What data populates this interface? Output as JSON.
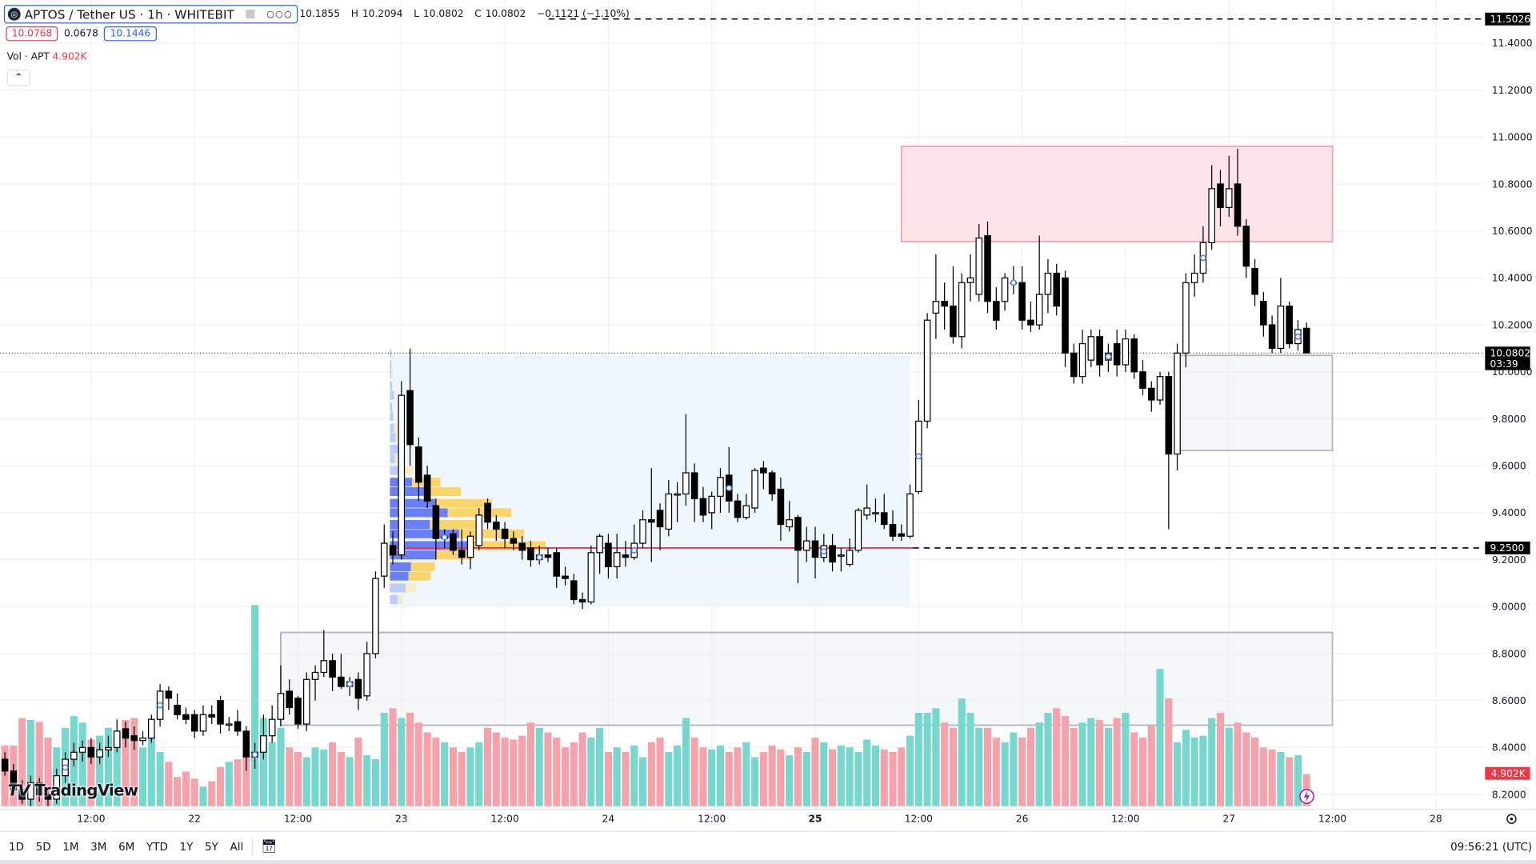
{
  "header": {
    "symbol_title": "APTOS / Tether US · 1h · WHITEBIT",
    "ohlc": {
      "open": "10.1855",
      "high": "10.2094",
      "low": "10.0802",
      "close": "10.0802",
      "change": "−0.1121 (−1.10%)"
    },
    "open_label": "O",
    "high_label": "H",
    "low_label": "L",
    "close_label": "C",
    "bid": "10.0768",
    "spread": "0.0678",
    "ask": "10.1446",
    "volume_label": "Vol · APT",
    "volume_value": "4.902K",
    "collapse_icon": "chevron-up-icon"
  },
  "toolbar": {
    "ranges": [
      "1D",
      "5D",
      "1M",
      "3M",
      "6M",
      "YTD",
      "1Y",
      "5Y",
      "All"
    ],
    "date_range_icon": "calendar-icon",
    "clock": "09:56:21 (UTC)"
  },
  "logo_text": "TradingView",
  "colors": {
    "up_body": "#ffffff",
    "down_body": "#000000",
    "volume_up": "#76d7cd",
    "volume_down": "#f7a1aa",
    "poc_line": "#f23645",
    "profile_up": "#6a7ff7",
    "profile_down": "#fcd56a",
    "supply_zone": "#fde4e8",
    "accent_blue": "#2962ff"
  },
  "chart_data": {
    "type": "candlestick",
    "ylim": [
      8.15,
      11.55
    ],
    "price_ticks": [
      "11.4000",
      "11.2000",
      "11.0000",
      "10.8000",
      "10.6000",
      "10.4000",
      "10.2000",
      "10.0000",
      "9.8000",
      "9.6000",
      "9.4000",
      "9.2000",
      "9.0000",
      "8.8000",
      "8.6000",
      "8.4000",
      "8.2000"
    ],
    "time_ticks": [
      "12:00",
      "22",
      "12:00",
      "23",
      "12:00",
      "24",
      "12:00",
      "25",
      "12:00",
      "26",
      "12:00",
      "27",
      "12:00",
      "28"
    ],
    "bold_tick": "25",
    "price_labels": {
      "high_line": "11.5026",
      "last_price": "10.0802",
      "countdown": "03:39",
      "level": "9.2500",
      "last_volume": "4.902K"
    },
    "levels": {
      "high_line": 11.5026,
      "horizontal_level": 9.25,
      "last_price": 10.0802
    },
    "zones": [
      {
        "name": "supply-zone",
        "price_top": 10.96,
        "price_bottom": 10.555,
        "from_candle": 104,
        "to_candle": 154,
        "kind": "red"
      },
      {
        "name": "demand-zone-upper",
        "price_top": 10.07,
        "price_bottom": 9.665,
        "from_candle": 136,
        "to_candle": 154,
        "kind": "gray"
      },
      {
        "name": "demand-zone-lower",
        "price_top": 8.89,
        "price_bottom": 8.495,
        "from_candle": 32,
        "to_candle": 154,
        "kind": "gray"
      }
    ],
    "volume_profile": {
      "from_candle": 45,
      "to_candle": 105,
      "poc": 9.25,
      "price_top": 10.1,
      "price_bottom": 9.0,
      "rows": [
        {
          "price": 10.08,
          "up": 4,
          "down": 0
        },
        {
          "price": 10.03,
          "up": 4,
          "down": 2
        },
        {
          "price": 9.99,
          "up": 4,
          "down": 5
        },
        {
          "price": 9.94,
          "up": 6,
          "down": 3
        },
        {
          "price": 9.9,
          "up": 12,
          "down": 2
        },
        {
          "price": 9.85,
          "up": 6,
          "down": 3
        },
        {
          "price": 9.81,
          "up": 9,
          "down": 3
        },
        {
          "price": 9.76,
          "up": 12,
          "down": 17
        },
        {
          "price": 9.72,
          "up": 16,
          "down": 13
        },
        {
          "price": 9.67,
          "up": 24,
          "down": 5
        },
        {
          "price": 9.63,
          "up": 14,
          "down": 10
        },
        {
          "price": 9.58,
          "up": 32,
          "down": 32
        },
        {
          "price": 9.53,
          "up": 62,
          "down": 80
        },
        {
          "price": 9.49,
          "up": 97,
          "down": 102
        },
        {
          "price": 9.44,
          "up": 127,
          "down": 159
        },
        {
          "price": 9.4,
          "up": 162,
          "down": 178
        },
        {
          "price": 9.35,
          "up": 112,
          "down": 139
        },
        {
          "price": 9.31,
          "up": 194,
          "down": 182
        },
        {
          "price": 9.26,
          "up": 222,
          "down": 214
        },
        {
          "price": 9.22,
          "up": 130,
          "down": 102
        },
        {
          "price": 9.17,
          "up": 59,
          "down": 67
        },
        {
          "price": 9.13,
          "up": 52,
          "down": 62
        },
        {
          "price": 9.08,
          "up": 44,
          "down": 28
        },
        {
          "price": 9.03,
          "up": 22,
          "down": 14
        }
      ]
    },
    "markers": [
      7,
      18,
      29,
      40,
      51,
      62,
      73,
      84,
      95,
      106,
      117,
      128,
      139,
      150
    ],
    "ohlc": [
      [
        8.35,
        8.38,
        8.28,
        8.3
      ],
      [
        8.3,
        8.33,
        8.2,
        8.22
      ],
      [
        8.22,
        8.26,
        8.16,
        8.18
      ],
      [
        8.18,
        8.28,
        8.15,
        8.25
      ],
      [
        8.25,
        8.27,
        8.17,
        8.2
      ],
      [
        8.2,
        8.23,
        8.15,
        8.18
      ],
      [
        8.18,
        8.31,
        8.16,
        8.28
      ],
      [
        8.28,
        8.38,
        8.25,
        8.35
      ],
      [
        8.35,
        8.42,
        8.32,
        8.38
      ],
      [
        8.38,
        8.43,
        8.34,
        8.4
      ],
      [
        8.4,
        8.44,
        8.33,
        8.36
      ],
      [
        8.36,
        8.42,
        8.33,
        8.39
      ],
      [
        8.39,
        8.45,
        8.36,
        8.4
      ],
      [
        8.4,
        8.52,
        8.38,
        8.47
      ],
      [
        8.48,
        8.51,
        8.4,
        8.44
      ],
      [
        8.45,
        8.49,
        8.39,
        8.43
      ],
      [
        8.43,
        8.47,
        8.41,
        8.44
      ],
      [
        8.44,
        8.54,
        8.42,
        8.52
      ],
      [
        8.52,
        8.67,
        8.49,
        8.64
      ],
      [
        8.64,
        8.66,
        8.56,
        8.61
      ],
      [
        8.58,
        8.63,
        8.52,
        8.54
      ],
      [
        8.54,
        8.57,
        8.5,
        8.52
      ],
      [
        8.54,
        8.56,
        8.44,
        8.47
      ],
      [
        8.47,
        8.58,
        8.45,
        8.54
      ],
      [
        8.54,
        8.58,
        8.5,
        8.53
      ],
      [
        8.6,
        8.62,
        8.46,
        8.5
      ],
      [
        8.5,
        8.53,
        8.47,
        8.5
      ],
      [
        8.51,
        8.56,
        8.45,
        8.47
      ],
      [
        8.47,
        8.49,
        8.3,
        8.36
      ],
      [
        8.36,
        8.42,
        8.31,
        8.38
      ],
      [
        8.38,
        8.54,
        8.35,
        8.45
      ],
      [
        8.45,
        8.58,
        8.42,
        8.52
      ],
      [
        8.52,
        8.75,
        8.49,
        8.63
      ],
      [
        8.64,
        8.69,
        8.54,
        8.57
      ],
      [
        8.61,
        8.62,
        8.48,
        8.5
      ],
      [
        8.5,
        8.72,
        8.47,
        8.69
      ],
      [
        8.69,
        8.75,
        8.6,
        8.72
      ],
      [
        8.72,
        8.9,
        8.7,
        8.77
      ],
      [
        8.77,
        8.8,
        8.64,
        8.7
      ],
      [
        8.7,
        8.8,
        8.65,
        8.66
      ],
      [
        8.66,
        8.7,
        8.62,
        8.68
      ],
      [
        8.69,
        8.72,
        8.56,
        8.61
      ],
      [
        8.62,
        8.85,
        8.6,
        8.8
      ],
      [
        8.8,
        9.15,
        8.78,
        9.12
      ],
      [
        9.13,
        9.35,
        9.08,
        9.27
      ],
      [
        9.26,
        9.32,
        9.18,
        9.22
      ],
      [
        9.22,
        9.96,
        9.2,
        9.9
      ],
      [
        9.92,
        10.1,
        9.6,
        9.69
      ],
      [
        9.68,
        9.72,
        9.45,
        9.53
      ],
      [
        9.56,
        9.6,
        9.42,
        9.45
      ],
      [
        9.43,
        9.46,
        9.2,
        9.29
      ],
      [
        9.29,
        9.33,
        9.25,
        9.3
      ],
      [
        9.31,
        9.33,
        9.22,
        9.24
      ],
      [
        9.24,
        9.33,
        9.18,
        9.21
      ],
      [
        9.21,
        9.32,
        9.16,
        9.3
      ],
      [
        9.26,
        9.42,
        9.24,
        9.39
      ],
      [
        9.44,
        9.46,
        9.33,
        9.36
      ],
      [
        9.36,
        9.39,
        9.28,
        9.33
      ],
      [
        9.33,
        9.36,
        9.25,
        9.29
      ],
      [
        9.29,
        9.32,
        9.24,
        9.27
      ],
      [
        9.27,
        9.3,
        9.2,
        9.24
      ],
      [
        9.25,
        9.28,
        9.17,
        9.2
      ],
      [
        9.2,
        9.26,
        9.18,
        9.22
      ],
      [
        9.22,
        9.25,
        9.19,
        9.21
      ],
      [
        9.23,
        9.25,
        9.08,
        9.13
      ],
      [
        9.13,
        9.17,
        9.09,
        9.12
      ],
      [
        9.11,
        9.14,
        9.01,
        9.03
      ],
      [
        9.03,
        9.06,
        8.99,
        9.02
      ],
      [
        9.02,
        9.26,
        9.01,
        9.23
      ],
      [
        9.23,
        9.31,
        9.14,
        9.3
      ],
      [
        9.27,
        9.31,
        9.12,
        9.17
      ],
      [
        9.17,
        9.31,
        9.12,
        9.23
      ],
      [
        9.22,
        9.28,
        9.17,
        9.21
      ],
      [
        9.21,
        9.35,
        9.2,
        9.27
      ],
      [
        9.27,
        9.41,
        9.25,
        9.37
      ],
      [
        9.37,
        9.59,
        9.19,
        9.36
      ],
      [
        9.41,
        9.44,
        9.24,
        9.34
      ],
      [
        9.33,
        9.54,
        9.3,
        9.48
      ],
      [
        9.48,
        9.53,
        9.36,
        9.48
      ],
      [
        9.48,
        9.82,
        9.43,
        9.57
      ],
      [
        9.57,
        9.61,
        9.36,
        9.46
      ],
      [
        9.46,
        9.51,
        9.36,
        9.39
      ],
      [
        9.4,
        9.49,
        9.33,
        9.47
      ],
      [
        9.47,
        9.59,
        9.4,
        9.55
      ],
      [
        9.56,
        9.68,
        9.4,
        9.45
      ],
      [
        9.45,
        9.48,
        9.36,
        9.38
      ],
      [
        9.38,
        9.48,
        9.37,
        9.43
      ],
      [
        9.42,
        9.59,
        9.4,
        9.58
      ],
      [
        9.59,
        9.62,
        9.5,
        9.57
      ],
      [
        9.57,
        9.58,
        9.45,
        9.48
      ],
      [
        9.5,
        9.55,
        9.28,
        9.35
      ],
      [
        9.34,
        9.45,
        9.32,
        9.37
      ],
      [
        9.38,
        9.39,
        9.1,
        9.24
      ],
      [
        9.24,
        9.34,
        9.19,
        9.28
      ],
      [
        9.28,
        9.34,
        9.12,
        9.21
      ],
      [
        9.21,
        9.31,
        9.19,
        9.26
      ],
      [
        9.26,
        9.31,
        9.15,
        9.19
      ],
      [
        9.22,
        9.25,
        9.15,
        9.22
      ],
      [
        9.18,
        9.29,
        9.17,
        9.24
      ],
      [
        9.24,
        9.42,
        9.23,
        9.41
      ],
      [
        9.39,
        9.52,
        9.37,
        9.42
      ],
      [
        9.4,
        9.46,
        9.36,
        9.4
      ],
      [
        9.4,
        9.48,
        9.33,
        9.35
      ],
      [
        9.35,
        9.41,
        9.28,
        9.3
      ],
      [
        9.31,
        9.35,
        9.28,
        9.3
      ],
      [
        9.3,
        9.52,
        9.29,
        9.48
      ],
      [
        9.49,
        9.88,
        9.48,
        9.79
      ],
      [
        9.79,
        10.25,
        9.76,
        10.22
      ],
      [
        10.25,
        10.5,
        10.14,
        10.3
      ],
      [
        10.3,
        10.38,
        10.18,
        10.28
      ],
      [
        10.28,
        10.45,
        10.12,
        10.15
      ],
      [
        10.15,
        10.42,
        10.1,
        10.38
      ],
      [
        10.38,
        10.5,
        10.3,
        10.4
      ],
      [
        10.33,
        10.63,
        10.3,
        10.57
      ],
      [
        10.58,
        10.64,
        10.25,
        10.3
      ],
      [
        10.3,
        10.36,
        10.18,
        10.22
      ],
      [
        10.3,
        10.42,
        10.26,
        10.4
      ],
      [
        10.38,
        10.45,
        10.33,
        10.38
      ],
      [
        10.38,
        10.45,
        10.18,
        10.22
      ],
      [
        10.22,
        10.3,
        10.17,
        10.2
      ],
      [
        10.2,
        10.58,
        10.18,
        10.33
      ],
      [
        10.33,
        10.48,
        10.25,
        10.42
      ],
      [
        10.42,
        10.46,
        10.24,
        10.28
      ],
      [
        10.4,
        10.43,
        10.02,
        10.08
      ],
      [
        10.08,
        10.12,
        9.95,
        9.98
      ],
      [
        9.98,
        10.18,
        9.95,
        10.12
      ],
      [
        10.05,
        10.18,
        10.02,
        10.15
      ],
      [
        10.15,
        10.18,
        9.98,
        10.03
      ],
      [
        10.05,
        10.12,
        10.0,
        10.08
      ],
      [
        10.12,
        10.18,
        9.98,
        10.03
      ],
      [
        10.03,
        10.18,
        10.0,
        10.14
      ],
      [
        10.14,
        10.16,
        9.97,
        10.0
      ],
      [
        10.0,
        10.05,
        9.9,
        9.93
      ],
      [
        9.93,
        9.96,
        9.83,
        9.88
      ],
      [
        9.88,
        10.0,
        9.86,
        9.98
      ],
      [
        9.98,
        10.0,
        9.33,
        9.65
      ],
      [
        9.65,
        10.12,
        9.58,
        10.08
      ],
      [
        10.08,
        10.42,
        10.02,
        10.38
      ],
      [
        10.38,
        10.5,
        10.32,
        10.42
      ],
      [
        10.42,
        10.62,
        10.38,
        10.55
      ],
      [
        10.55,
        10.88,
        10.52,
        10.78
      ],
      [
        10.8,
        10.86,
        10.62,
        10.7
      ],
      [
        10.7,
        10.92,
        10.66,
        10.78
      ],
      [
        10.8,
        10.95,
        10.58,
        10.62
      ],
      [
        10.62,
        10.65,
        10.4,
        10.45
      ],
      [
        10.44,
        10.48,
        10.28,
        10.33
      ],
      [
        10.3,
        10.34,
        10.15,
        10.2
      ],
      [
        10.2,
        10.24,
        10.08,
        10.1
      ],
      [
        10.1,
        10.4,
        10.08,
        10.28
      ],
      [
        10.28,
        10.3,
        10.1,
        10.12
      ],
      [
        10.12,
        10.22,
        10.09,
        10.18
      ],
      [
        10.1855,
        10.2094,
        10.0802,
        10.0802
      ]
    ],
    "volume_k": [
      9.3,
      9.3,
      13.5,
      13.2,
      12.9,
      10.5,
      9.0,
      12.0,
      13.8,
      12.8,
      10.2,
      10.8,
      12.0,
      11.3,
      13.2,
      13.5,
      9.0,
      10.8,
      8.3,
      6.8,
      4.5,
      5.3,
      4.2,
      3.0,
      3.8,
      6.0,
      6.8,
      7.2,
      7.8,
      30.8,
      13.5,
      9.8,
      12.0,
      9.0,
      8.3,
      7.5,
      9.0,
      8.7,
      9.8,
      8.3,
      7.5,
      10.5,
      7.8,
      7.2,
      14.3,
      15.0,
      13.5,
      14.3,
      12.8,
      11.3,
      10.5,
      9.8,
      9.0,
      8.3,
      9.0,
      9.8,
      12.0,
      11.3,
      10.5,
      10.2,
      10.8,
      12.8,
      12.0,
      11.3,
      10.5,
      9.0,
      9.8,
      11.3,
      10.5,
      12.0,
      8.3,
      9.0,
      8.3,
      9.3,
      7.5,
      9.8,
      10.5,
      8.3,
      9.3,
      13.5,
      10.5,
      9.0,
      8.7,
      9.3,
      8.3,
      9.0,
      9.8,
      7.5,
      8.3,
      9.3,
      8.7,
      7.8,
      9.0,
      8.3,
      10.5,
      9.8,
      8.7,
      9.3,
      9.0,
      8.3,
      10.2,
      9.3,
      8.7,
      8.3,
      9.0,
      10.8,
      14.3,
      14.3,
      15.0,
      12.8,
      12.0,
      16.5,
      14.3,
      12.0,
      12.0,
      10.5,
      9.8,
      11.3,
      10.5,
      12.0,
      12.8,
      14.3,
      15.0,
      13.8,
      12.0,
      12.8,
      13.5,
      13.2,
      12.0,
      13.5,
      14.3,
      11.3,
      10.5,
      12.3,
      21.0,
      16.5,
      9.8,
      11.7,
      10.5,
      10.8,
      13.5,
      14.3,
      12.0,
      12.8,
      11.3,
      10.5,
      9.0,
      8.7,
      8.3,
      7.5,
      7.8,
      4.902
    ]
  }
}
